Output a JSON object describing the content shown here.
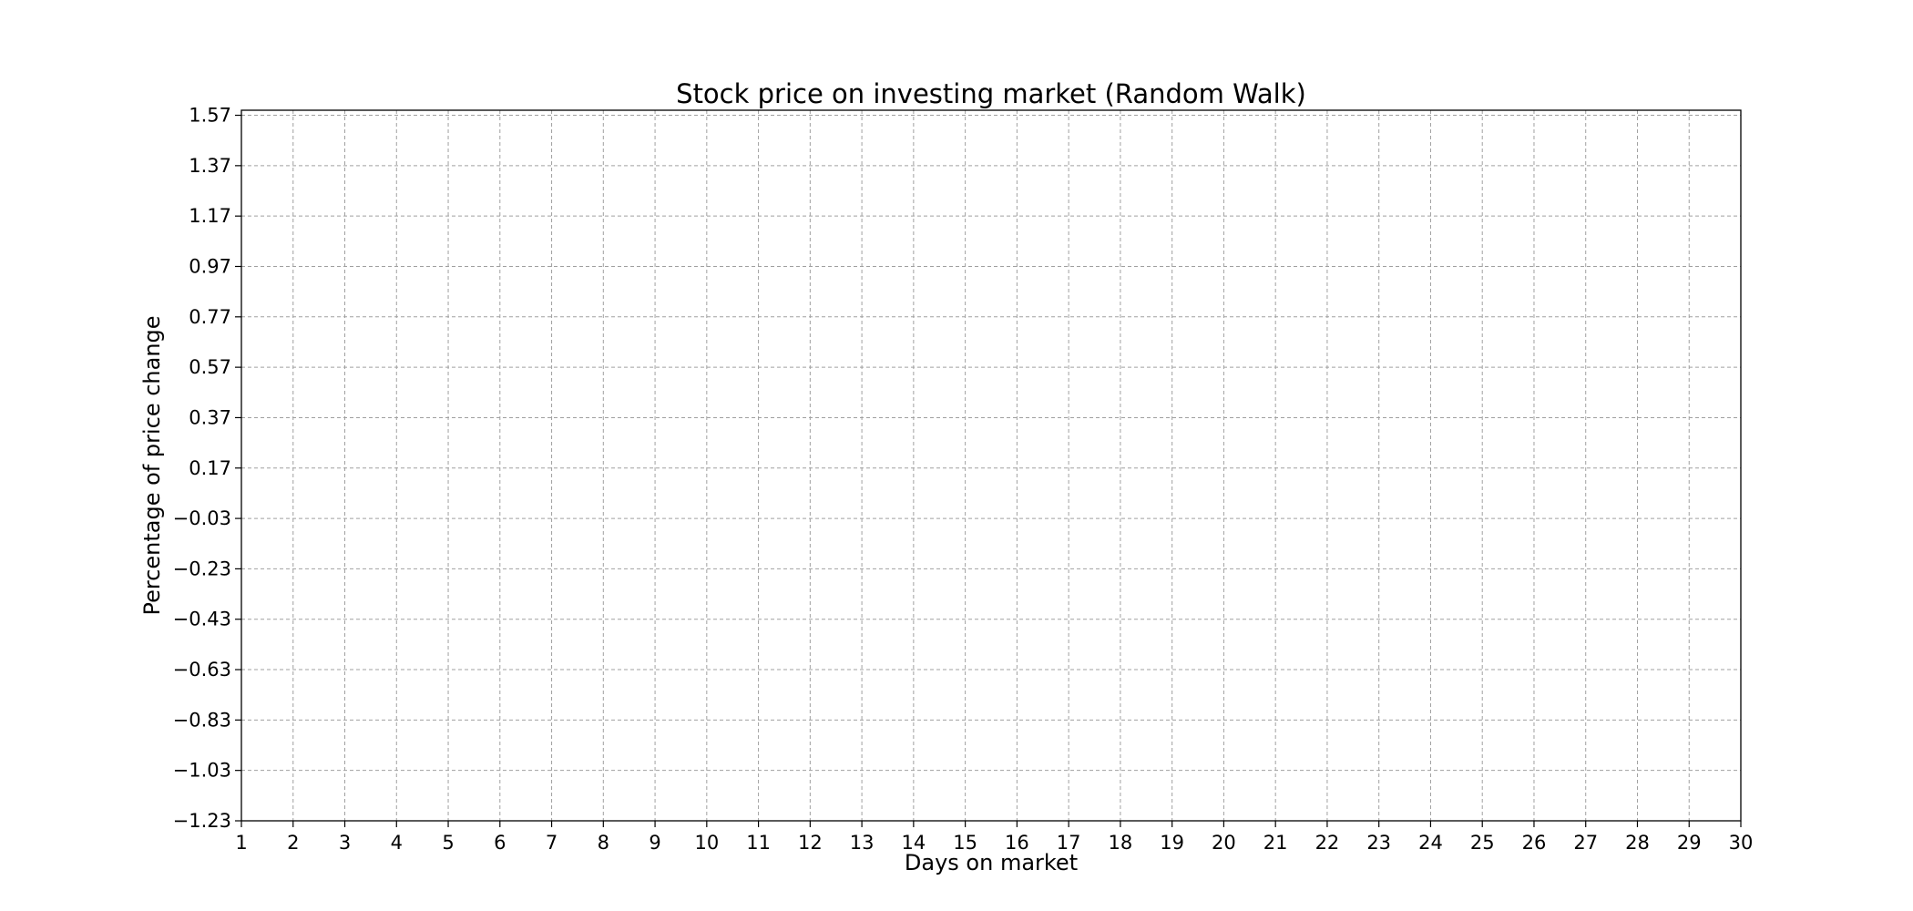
{
  "chart_data": {
    "type": "line",
    "title": "Stock price on investing market (Random Walk)",
    "xlabel": "Days on market",
    "ylabel": "Percentage of price change",
    "xlim": [
      1,
      30
    ],
    "ylim": [
      -1.23,
      1.59
    ],
    "x_ticks": [
      "1",
      "2",
      "3",
      "4",
      "5",
      "6",
      "7",
      "8",
      "9",
      "10",
      "11",
      "12",
      "13",
      "14",
      "15",
      "16",
      "17",
      "18",
      "19",
      "20",
      "21",
      "22",
      "23",
      "24",
      "25",
      "26",
      "27",
      "28",
      "29",
      "30"
    ],
    "y_ticks": [
      "1.57",
      "1.37",
      "1.17",
      "0.97",
      "0.77",
      "0.57",
      "0.37",
      "0.17",
      "−0.03",
      "−0.23",
      "−0.43",
      "−0.63",
      "−0.83",
      "−1.03",
      "−1.23"
    ],
    "grid": true,
    "grid_style": "dashed",
    "series": []
  }
}
